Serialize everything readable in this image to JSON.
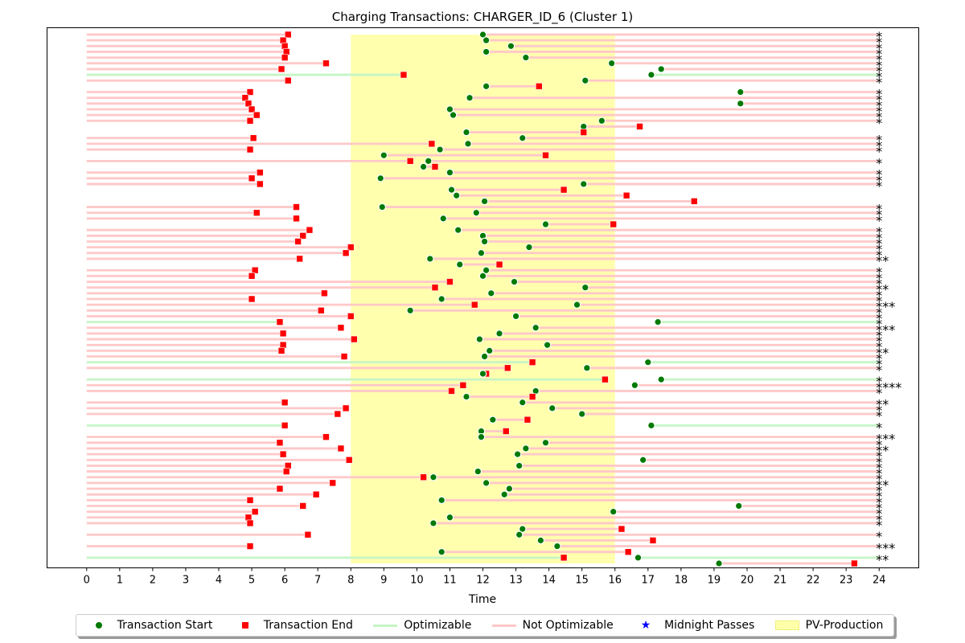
{
  "chart_data": {
    "type": "timeline",
    "title": "Charging Transactions: CHARGER_ID_6 (Cluster 1)",
    "xlabel": "Time",
    "ylabel": "",
    "xlim": [
      -1.2,
      25.2
    ],
    "xticks": [
      "0",
      "1",
      "2",
      "3",
      "4",
      "5",
      "6",
      "7",
      "8",
      "9",
      "10",
      "11",
      "12",
      "13",
      "14",
      "15",
      "16",
      "17",
      "18",
      "19",
      "20",
      "21",
      "22",
      "23",
      "24"
    ],
    "pv_production": [
      8,
      16
    ],
    "colors": {
      "start": "#007a00",
      "end": "#ff0000",
      "optimizable": "#c6f5c6",
      "not_optimizable": "#ffc8c8",
      "midnight": "#0000ff",
      "pv": "#ffffaa"
    },
    "legend": [
      {
        "label": "Transaction Start",
        "marker": "circle"
      },
      {
        "label": "Transaction End",
        "marker": "square"
      },
      {
        "label": "Optimizable",
        "marker": "line-green"
      },
      {
        "label": "Not Optimizable",
        "marker": "line-red"
      },
      {
        "label": "Midnight Passes",
        "marker": "star"
      },
      {
        "label": "PV-Production",
        "marker": "pv-patch"
      }
    ],
    "transactions": [
      {
        "start": 12.0,
        "end": 6.1,
        "opt": false,
        "mid": "*"
      },
      {
        "start": 12.1,
        "end": 5.95,
        "opt": false,
        "mid": "*"
      },
      {
        "start": 12.85,
        "end": 6.0,
        "opt": false,
        "mid": "*"
      },
      {
        "start": 12.1,
        "end": 6.05,
        "opt": false,
        "mid": "*"
      },
      {
        "start": 13.3,
        "end": 6.0,
        "opt": false,
        "mid": "*"
      },
      {
        "start": 15.9,
        "end": 7.25,
        "opt": false,
        "mid": "*"
      },
      {
        "start": 17.4,
        "end": 5.9,
        "opt": false,
        "mid": "*"
      },
      {
        "start": 17.1,
        "end": 9.6,
        "opt": true,
        "mid": "*"
      },
      {
        "start": 15.1,
        "end": 6.1,
        "opt": false,
        "mid": "*"
      },
      {
        "start": 12.1,
        "end": 13.7,
        "opt": false,
        "mid": ""
      },
      {
        "start": 19.8,
        "end": 4.95,
        "opt": false,
        "mid": "*"
      },
      {
        "start": 11.6,
        "end": 4.8,
        "opt": false,
        "mid": "*"
      },
      {
        "start": 19.8,
        "end": 4.9,
        "opt": false,
        "mid": "*"
      },
      {
        "start": 11.0,
        "end": 5.0,
        "opt": false,
        "mid": "*"
      },
      {
        "start": 11.1,
        "end": 5.15,
        "opt": false,
        "mid": "*"
      },
      {
        "start": 15.6,
        "end": 4.95,
        "opt": false,
        "mid": "*"
      },
      {
        "start": 15.05,
        "end": 16.75,
        "opt": false,
        "mid": ""
      },
      {
        "start": 11.5,
        "end": 15.05,
        "opt": false,
        "mid": ""
      },
      {
        "start": 13.2,
        "end": 5.05,
        "opt": false,
        "mid": "*"
      },
      {
        "start": 11.55,
        "end": 10.45,
        "opt": false,
        "mid": "*"
      },
      {
        "start": 10.7,
        "end": 4.95,
        "opt": false,
        "mid": "*"
      },
      {
        "start": 9.0,
        "end": 13.9,
        "opt": false,
        "mid": ""
      },
      {
        "start": 10.35,
        "end": 9.8,
        "opt": false,
        "mid": "*"
      },
      {
        "start": 10.2,
        "end": 10.55,
        "opt": false,
        "mid": ""
      },
      {
        "start": 11.0,
        "end": 5.25,
        "opt": false,
        "mid": "*"
      },
      {
        "start": 8.9,
        "end": 5.0,
        "opt": false,
        "mid": "*"
      },
      {
        "start": 15.05,
        "end": 5.25,
        "opt": false,
        "mid": "*"
      },
      {
        "start": 11.05,
        "end": 14.45,
        "opt": false,
        "mid": ""
      },
      {
        "start": 11.2,
        "end": 16.35,
        "opt": false,
        "mid": ""
      },
      {
        "start": 12.05,
        "end": 18.4,
        "opt": false,
        "mid": ""
      },
      {
        "start": 8.95,
        "end": 6.35,
        "opt": false,
        "mid": "*"
      },
      {
        "start": 11.8,
        "end": 5.15,
        "opt": false,
        "mid": "*"
      },
      {
        "start": 10.8,
        "end": 6.35,
        "opt": false,
        "mid": "*"
      },
      {
        "start": 13.9,
        "end": 15.95,
        "opt": false,
        "mid": ""
      },
      {
        "start": 11.25,
        "end": 6.75,
        "opt": false,
        "mid": "*"
      },
      {
        "start": 12.0,
        "end": 6.55,
        "opt": false,
        "mid": "*"
      },
      {
        "start": 12.05,
        "end": 6.4,
        "opt": false,
        "mid": "*"
      },
      {
        "start": 13.4,
        "end": 8.0,
        "opt": false,
        "mid": "*"
      },
      {
        "start": 11.95,
        "end": 7.85,
        "opt": false,
        "mid": "*"
      },
      {
        "start": 10.4,
        "end": 6.45,
        "opt": false,
        "mid": "**"
      },
      {
        "start": 11.3,
        "end": 12.5,
        "opt": false,
        "mid": ""
      },
      {
        "start": 12.1,
        "end": 5.1,
        "opt": false,
        "mid": "*"
      },
      {
        "start": 12.0,
        "end": 5.0,
        "opt": false,
        "mid": "*"
      },
      {
        "start": 12.95,
        "end": 11.0,
        "opt": false,
        "mid": "*"
      },
      {
        "start": 15.1,
        "end": 10.55,
        "opt": false,
        "mid": "**"
      },
      {
        "start": 12.25,
        "end": 7.2,
        "opt": false,
        "mid": "*"
      },
      {
        "start": 10.75,
        "end": 5.0,
        "opt": false,
        "mid": "*"
      },
      {
        "start": 14.85,
        "end": 11.75,
        "opt": false,
        "mid": "***"
      },
      {
        "start": 9.8,
        "end": 7.1,
        "opt": false,
        "mid": "*"
      },
      {
        "start": 13.0,
        "end": 8.0,
        "opt": false,
        "mid": "*"
      },
      {
        "start": 17.3,
        "end": 5.85,
        "opt": true,
        "mid": "*"
      },
      {
        "start": 13.6,
        "end": 7.7,
        "opt": false,
        "mid": "***"
      },
      {
        "start": 12.5,
        "end": 5.95,
        "opt": false,
        "mid": "*"
      },
      {
        "start": 11.9,
        "end": 8.1,
        "opt": false,
        "mid": "*"
      },
      {
        "start": 13.95,
        "end": 5.95,
        "opt": false,
        "mid": "*"
      },
      {
        "start": 12.2,
        "end": 5.9,
        "opt": false,
        "mid": "**"
      },
      {
        "start": 12.05,
        "end": 7.8,
        "opt": false,
        "mid": "*"
      },
      {
        "start": 17.0,
        "end": 13.5,
        "opt": true,
        "mid": "*"
      },
      {
        "start": 15.15,
        "end": 12.75,
        "opt": false,
        "mid": "*"
      },
      {
        "start": 12.0,
        "end": 12.1,
        "opt": false,
        "mid": ""
      },
      {
        "start": 17.4,
        "end": 15.7,
        "opt": true,
        "mid": "*"
      },
      {
        "start": 16.6,
        "end": 11.4,
        "opt": false,
        "mid": "****"
      },
      {
        "start": 13.6,
        "end": 11.05,
        "opt": false,
        "mid": "*"
      },
      {
        "start": 11.5,
        "end": 13.5,
        "opt": false,
        "mid": ""
      },
      {
        "start": 13.2,
        "end": 6.0,
        "opt": false,
        "mid": "**"
      },
      {
        "start": 14.1,
        "end": 7.85,
        "opt": false,
        "mid": "*"
      },
      {
        "start": 15.0,
        "end": 7.6,
        "opt": false,
        "mid": "*"
      },
      {
        "start": 12.3,
        "end": 13.35,
        "opt": false,
        "mid": ""
      },
      {
        "start": 17.1,
        "end": 6.0,
        "opt": true,
        "mid": "*"
      },
      {
        "start": 11.95,
        "end": 12.7,
        "opt": false,
        "mid": ""
      },
      {
        "start": 11.95,
        "end": 7.25,
        "opt": false,
        "mid": "***"
      },
      {
        "start": 13.9,
        "end": 5.85,
        "opt": false,
        "mid": "*"
      },
      {
        "start": 13.3,
        "end": 7.7,
        "opt": false,
        "mid": "**"
      },
      {
        "start": 13.05,
        "end": 5.95,
        "opt": false,
        "mid": "*"
      },
      {
        "start": 16.85,
        "end": 7.95,
        "opt": false,
        "mid": "*"
      },
      {
        "start": 13.1,
        "end": 6.1,
        "opt": false,
        "mid": "*"
      },
      {
        "start": 11.85,
        "end": 6.05,
        "opt": false,
        "mid": "*"
      },
      {
        "start": 10.5,
        "end": 10.2,
        "opt": false,
        "mid": "*"
      },
      {
        "start": 12.1,
        "end": 7.45,
        "opt": false,
        "mid": "**"
      },
      {
        "start": 12.8,
        "end": 5.85,
        "opt": false,
        "mid": "*"
      },
      {
        "start": 12.65,
        "end": 6.95,
        "opt": false,
        "mid": "*"
      },
      {
        "start": 10.75,
        "end": 4.95,
        "opt": false,
        "mid": "*"
      },
      {
        "start": 19.75,
        "end": 6.55,
        "opt": false,
        "mid": "*"
      },
      {
        "start": 15.95,
        "end": 5.1,
        "opt": false,
        "mid": "*"
      },
      {
        "start": 11.0,
        "end": 4.9,
        "opt": false,
        "mid": "*"
      },
      {
        "start": 10.5,
        "end": 4.95,
        "opt": false,
        "mid": "*"
      },
      {
        "start": 13.2,
        "end": 16.2,
        "opt": false,
        "mid": ""
      },
      {
        "start": 13.1,
        "end": 6.7,
        "opt": false,
        "mid": "*"
      },
      {
        "start": 13.75,
        "end": 17.15,
        "opt": false,
        "mid": ""
      },
      {
        "start": 14.25,
        "end": 4.95,
        "opt": false,
        "mid": "***"
      },
      {
        "start": 10.75,
        "end": 16.4,
        "opt": false,
        "mid": ""
      },
      {
        "start": 16.7,
        "end": 14.45,
        "opt": true,
        "mid": "**"
      },
      {
        "start": 19.15,
        "end": 23.25,
        "opt": false,
        "mid": ""
      }
    ]
  }
}
